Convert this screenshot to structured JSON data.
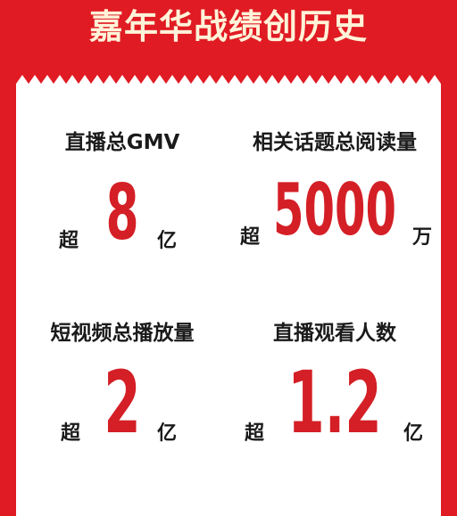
{
  "title": "嘉年华战绩创历史",
  "colors": {
    "background": "#e01b23",
    "title_text": "#fff3d9",
    "number": "#d41f26",
    "label": "#1a1a1a"
  },
  "stats": [
    {
      "label": "直播总GMV",
      "prefix": "超",
      "number": "8",
      "unit": "亿"
    },
    {
      "label": "相关话题总阅读量",
      "prefix": "超",
      "number": "5000",
      "unit": "万"
    },
    {
      "label": "短视频总播放量",
      "prefix": "超",
      "number": "2",
      "unit": "亿"
    },
    {
      "label": "直播观看人数",
      "prefix": "超",
      "number": "1.2",
      "unit": "亿"
    }
  ]
}
